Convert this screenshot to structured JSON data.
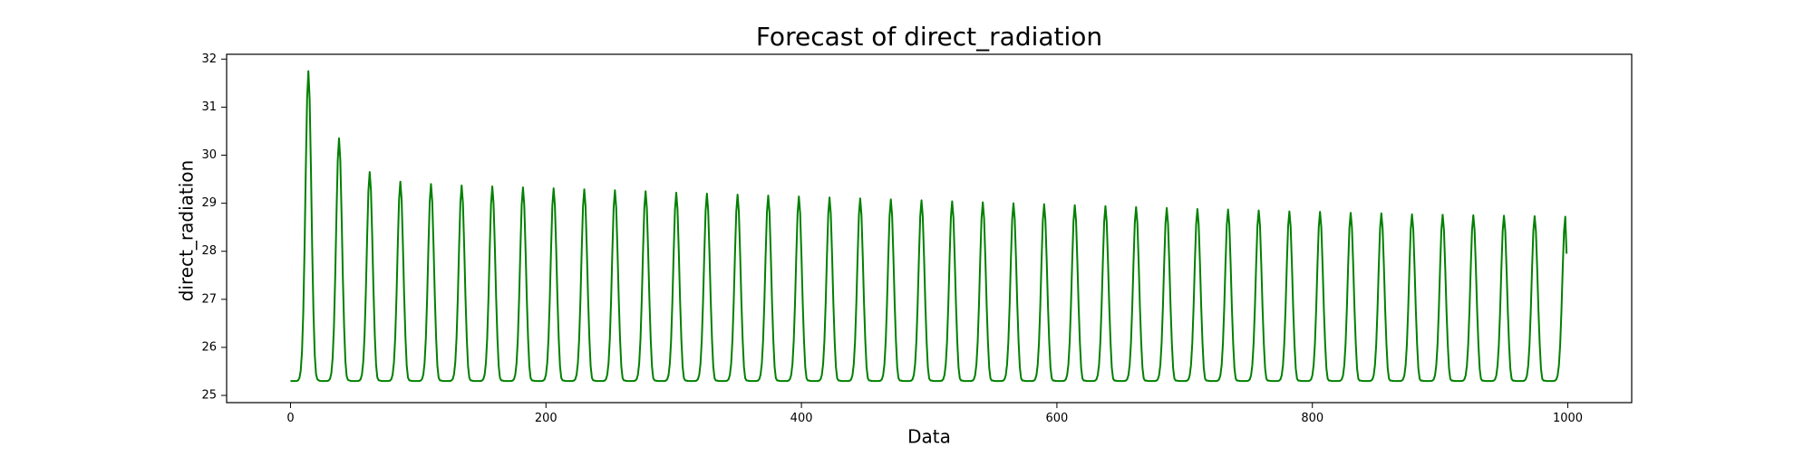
{
  "chart_data": {
    "type": "line",
    "title": "Forecast of direct_radiation",
    "xlabel": "Data",
    "ylabel": "direct_radiation",
    "xlim": [
      -50,
      1050
    ],
    "ylim": [
      24.85,
      32.1
    ],
    "xticks": [
      0,
      200,
      400,
      600,
      800,
      1000
    ],
    "yticks": [
      25,
      26,
      27,
      28,
      29,
      30,
      31,
      32
    ],
    "grid": false,
    "legend": "none",
    "colors": {
      "series": "#008000",
      "axes": "#000000",
      "background": "#ffffff"
    },
    "series": [
      {
        "x_start": 0,
        "x_step": 1,
        "x_end": 999,
        "period": 24,
        "first_peak_x": 14,
        "baseline": 25.3,
        "trough": 25.22,
        "peaks": [
          31.75,
          30.35,
          29.65,
          29.45,
          29.4,
          29.37,
          29.35,
          29.33,
          29.31,
          29.29,
          29.27,
          29.25,
          29.22,
          29.2,
          29.18,
          29.16,
          29.14,
          29.12,
          29.1,
          29.08,
          29.06,
          29.04,
          29.02,
          29.0,
          28.98,
          28.96,
          28.94,
          28.92,
          28.9,
          28.88,
          28.87,
          28.85,
          28.83,
          28.82,
          28.8,
          28.79,
          28.77,
          28.76,
          28.75,
          28.74,
          28.73,
          28.72
        ],
        "end_value": 27.95
      }
    ]
  }
}
